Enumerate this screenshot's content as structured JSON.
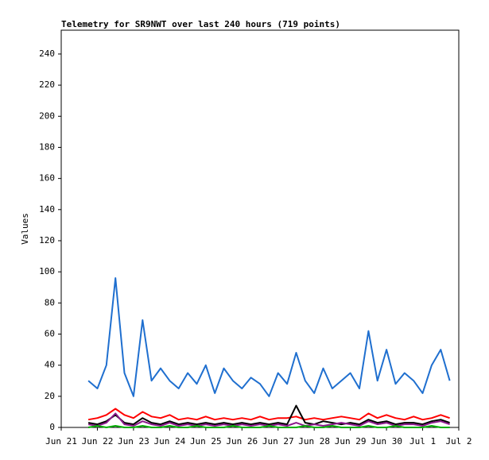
{
  "chart_data": {
    "type": "line",
    "title": "Telemetry for SR9NWT over last 240 hours (719 points)",
    "y_label": "Values",
    "xlim": [
      0,
      11
    ],
    "xticks": [
      {
        "value": 0,
        "label": "Jun 21"
      },
      {
        "value": 1,
        "label": "Jun 22"
      },
      {
        "value": 2,
        "label": "Jun 23"
      },
      {
        "value": 3,
        "label": "Jun 24"
      },
      {
        "value": 4,
        "label": "Jun 25"
      },
      {
        "value": 5,
        "label": "Jun 26"
      },
      {
        "value": 6,
        "label": "Jun 27"
      },
      {
        "value": 7,
        "label": "Jun 28"
      },
      {
        "value": 8,
        "label": "Jun 29"
      },
      {
        "value": 9,
        "label": "Jun 30"
      },
      {
        "value": 10,
        "label": "Jul 1"
      },
      {
        "value": 11,
        "label": "Jul 2"
      }
    ],
    "ylim": [
      0,
      255.3
    ],
    "yticks": [
      0,
      20,
      40,
      60,
      80,
      100,
      120,
      140,
      160,
      180,
      200,
      220,
      240
    ],
    "grid": false,
    "x": [
      0.75,
      1,
      1.25,
      1.5,
      1.75,
      2,
      2.25,
      2.5,
      2.75,
      3,
      3.25,
      3.5,
      3.75,
      4,
      4.25,
      4.5,
      4.75,
      5,
      5.25,
      5.5,
      5.75,
      6,
      6.25,
      6.5,
      6.75,
      7,
      7.25,
      7.5,
      7.75,
      8,
      8.25,
      8.5,
      8.75,
      9,
      9.25,
      9.5,
      9.75,
      10,
      10.25,
      10.5,
      10.75
    ],
    "series": [
      {
        "color": "#1f6fcf",
        "values": [
          30,
          25,
          40,
          96,
          35,
          20,
          69,
          30,
          38,
          30,
          25,
          35,
          28,
          40,
          22,
          38,
          30,
          25,
          32,
          28,
          20,
          35,
          28,
          48,
          30,
          22,
          38,
          25,
          30,
          35,
          25,
          62,
          30,
          50,
          28,
          35,
          30,
          22,
          40,
          50,
          30
        ]
      },
      {
        "color": "#ff0000",
        "values": [
          5,
          6,
          8,
          12,
          8,
          6,
          10,
          7,
          6,
          8,
          5,
          6,
          5,
          7,
          5,
          6,
          5,
          6,
          5,
          7,
          5,
          6,
          6,
          7,
          5,
          6,
          5,
          6,
          7,
          6,
          5,
          9,
          6,
          8,
          6,
          5,
          7,
          5,
          6,
          8,
          6
        ]
      },
      {
        "color": "#000000",
        "values": [
          3,
          2,
          4,
          8,
          3,
          2,
          6,
          3,
          2,
          4,
          2,
          3,
          2,
          3,
          2,
          3,
          2,
          3,
          2,
          3,
          2,
          3,
          2,
          14,
          3,
          2,
          4,
          3,
          2,
          3,
          2,
          5,
          3,
          4,
          2,
          3,
          3,
          2,
          4,
          5,
          3
        ]
      },
      {
        "color": "#8b1a8b",
        "values": [
          2,
          1,
          3,
          9,
          2,
          1,
          4,
          2,
          1,
          3,
          1,
          2,
          1,
          2,
          1,
          2,
          1,
          2,
          1,
          2,
          1,
          2,
          1,
          3,
          1,
          2,
          1,
          2,
          3,
          2,
          1,
          4,
          2,
          3,
          1,
          2,
          2,
          1,
          3,
          4,
          2
        ]
      },
      {
        "color": "#00b000",
        "values": [
          0,
          1,
          0,
          1,
          0,
          0,
          1,
          0,
          0,
          1,
          0,
          0,
          1,
          0,
          0,
          0,
          1,
          0,
          0,
          0,
          1,
          0,
          0,
          0,
          1,
          0,
          0,
          1,
          0,
          0,
          0,
          1,
          0,
          0,
          1,
          0,
          0,
          0,
          1,
          0,
          0
        ]
      }
    ]
  }
}
